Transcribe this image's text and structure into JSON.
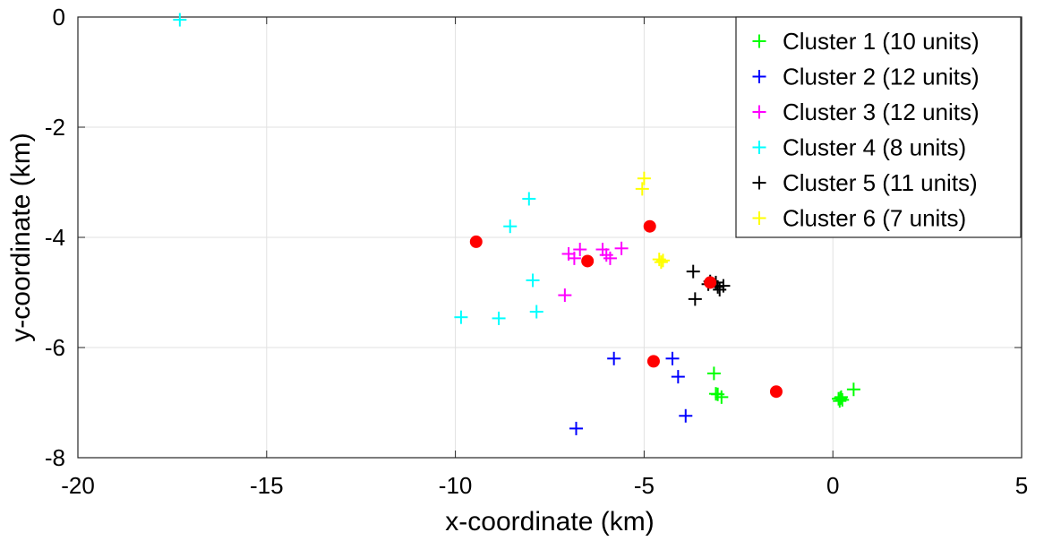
{
  "chart_data": {
    "type": "scatter",
    "title": "",
    "xlabel": "x-coordinate (km)",
    "ylabel": "y-coordinate (km)",
    "xlim": [
      -20,
      5
    ],
    "ylim": [
      -8,
      0
    ],
    "xticks": [
      -20,
      -15,
      -10,
      -5,
      0,
      5
    ],
    "yticks": [
      0,
      -2,
      -4,
      -6,
      -8
    ],
    "xtick_labels": [
      "-20",
      "-15",
      "-10",
      "-5",
      "0",
      "5"
    ],
    "ytick_labels": [
      "0",
      "-2",
      "-4",
      "-6",
      "-8"
    ],
    "grid": true,
    "legend_position": "top-right",
    "series": [
      {
        "name": "Cluster 1 (10 units)",
        "color": "#00ff00",
        "marker": "plus",
        "points": [
          [
            -3.15,
            -6.47
          ],
          [
            -3.1,
            -6.84
          ],
          [
            -2.95,
            -6.9
          ],
          [
            0.15,
            -6.93
          ],
          [
            0.25,
            -6.95
          ],
          [
            0.2,
            -6.92
          ],
          [
            0.55,
            -6.76
          ],
          [
            0.18,
            -6.97
          ],
          [
            -3.05,
            -6.85
          ],
          [
            0.22,
            -6.9
          ]
        ]
      },
      {
        "name": "Cluster 2 (12 units)",
        "color": "#0000ff",
        "marker": "plus",
        "points": [
          [
            -5.8,
            -6.2
          ],
          [
            -4.25,
            -6.2
          ],
          [
            -4.1,
            -6.53
          ],
          [
            -6.8,
            -7.47
          ],
          [
            -3.9,
            -7.24
          ]
        ]
      },
      {
        "name": "Cluster 3 (12 units)",
        "color": "#ff00ff",
        "marker": "plus",
        "points": [
          [
            -7.0,
            -4.3
          ],
          [
            -6.85,
            -4.38
          ],
          [
            -6.7,
            -4.22
          ],
          [
            -6.1,
            -4.22
          ],
          [
            -6.0,
            -4.32
          ],
          [
            -5.9,
            -4.38
          ],
          [
            -5.6,
            -4.2
          ],
          [
            -7.1,
            -5.05
          ]
        ]
      },
      {
        "name": "Cluster 4 (8 units)",
        "color": "#00ffff",
        "marker": "plus",
        "points": [
          [
            -17.3,
            -0.05
          ],
          [
            -8.05,
            -3.3
          ],
          [
            -8.55,
            -3.8
          ],
          [
            -7.95,
            -4.78
          ],
          [
            -7.85,
            -5.35
          ],
          [
            -8.85,
            -5.47
          ],
          [
            -9.85,
            -5.45
          ]
        ]
      },
      {
        "name": "Cluster 5 (11 units)",
        "color": "#000000",
        "marker": "plus",
        "points": [
          [
            -3.7,
            -4.62
          ],
          [
            -3.25,
            -4.8
          ],
          [
            -3.05,
            -4.9
          ],
          [
            -2.9,
            -4.88
          ],
          [
            -3.65,
            -5.12
          ],
          [
            -3.3,
            -4.85
          ],
          [
            -3.1,
            -4.82
          ],
          [
            -3.0,
            -4.95
          ]
        ]
      },
      {
        "name": "Cluster 6 (7 units)",
        "color": "#ffff00",
        "marker": "plus",
        "points": [
          [
            -5.0,
            -2.93
          ],
          [
            -5.05,
            -3.12
          ],
          [
            -4.55,
            -4.45
          ],
          [
            -4.5,
            -4.42
          ],
          [
            -4.6,
            -4.4
          ]
        ]
      }
    ],
    "centroids": {
      "color": "#ff0000",
      "marker": "filled-circle",
      "points": [
        [
          -9.45,
          -4.08
        ],
        [
          -6.5,
          -4.43
        ],
        [
          -4.85,
          -3.8
        ],
        [
          -3.25,
          -4.82
        ],
        [
          -4.75,
          -6.25
        ],
        [
          -1.5,
          -6.8
        ]
      ]
    }
  }
}
